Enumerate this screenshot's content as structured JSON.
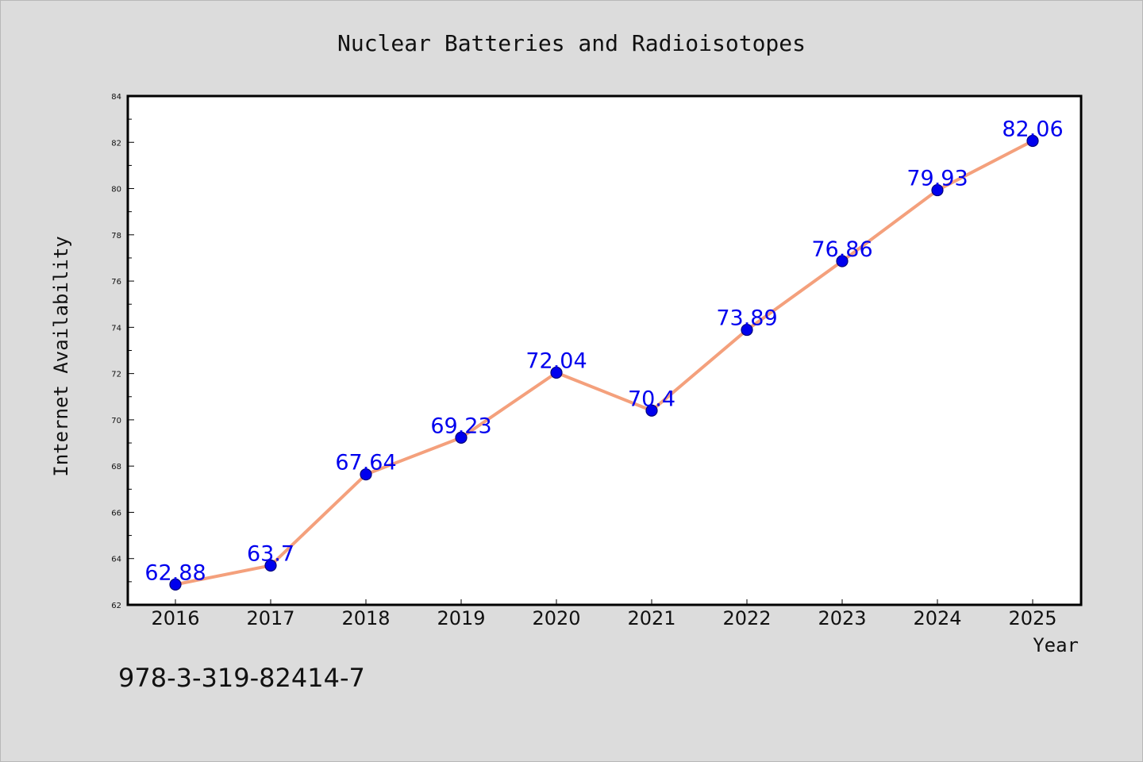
{
  "chart_data": {
    "type": "line",
    "title": "Nuclear Batteries and Radioisotopes",
    "xlabel": "Year",
    "ylabel": "Internet Availability",
    "categories": [
      "2016",
      "2017",
      "2018",
      "2019",
      "2020",
      "2021",
      "2022",
      "2023",
      "2024",
      "2025"
    ],
    "values": [
      62.88,
      63.7,
      67.64,
      69.23,
      72.04,
      70.4,
      73.89,
      76.86,
      79.93,
      82.06
    ],
    "data_labels": [
      "62.88",
      "63.7",
      "67.64",
      "69.23",
      "72.04",
      "70.4",
      "73.89",
      "76.86",
      "79.93",
      "82.06"
    ],
    "ylim": [
      62,
      84
    ],
    "yticks": [
      "62",
      "64",
      "66",
      "68",
      "70",
      "72",
      "74",
      "76",
      "78",
      "80",
      "82",
      "84"
    ],
    "grid": false,
    "legend": false,
    "colors": {
      "line": "#f4a07c",
      "marker_fill": "#0000ee",
      "marker_edge": "#00007a",
      "data_label": "#0000ee",
      "background": "#dcdcdc",
      "plot_background": "#ffffff"
    }
  },
  "footnote": "978-3-319-82414-7"
}
